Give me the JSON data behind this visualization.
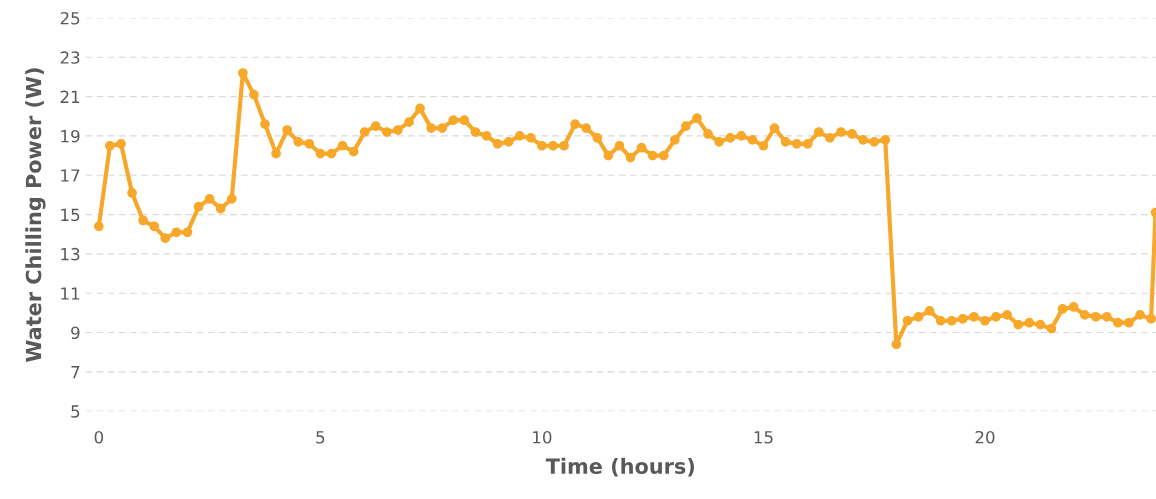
{
  "chart_data": {
    "type": "line",
    "xlabel": "Time (hours)",
    "ylabel": "Water Chilling Power (W)",
    "x": [
      0,
      0.25,
      0.5,
      0.75,
      1,
      1.25,
      1.5,
      1.75,
      2,
      2.25,
      2.5,
      2.75,
      3,
      3.25,
      3.5,
      3.75,
      4,
      4.25,
      4.5,
      4.75,
      5,
      5.25,
      5.5,
      5.75,
      6,
      6.25,
      6.5,
      6.75,
      7,
      7.25,
      7.5,
      7.75,
      8,
      8.25,
      8.5,
      8.75,
      9,
      9.25,
      9.5,
      9.75,
      10,
      10.25,
      10.5,
      10.75,
      11,
      11.25,
      11.5,
      11.75,
      12,
      12.25,
      12.5,
      12.75,
      13,
      13.25,
      13.5,
      13.75,
      14,
      14.25,
      14.5,
      14.75,
      15,
      15.25,
      15.5,
      15.75,
      16,
      16.25,
      16.5,
      16.75,
      17,
      17.25,
      17.5,
      17.75,
      18,
      18.25,
      18.5,
      18.75,
      19,
      19.25,
      19.5,
      19.75,
      20,
      20.25,
      20.5,
      20.75,
      21,
      21.25,
      21.5,
      21.75,
      22,
      22.25,
      22.5,
      22.75,
      23,
      23.25,
      23.5,
      23.75,
      23.85
    ],
    "series": [
      {
        "color": "#f7a82a",
        "values": [
          14.4,
          18.5,
          18.6,
          16.1,
          14.7,
          14.4,
          13.8,
          14.1,
          14.1,
          15.4,
          15.8,
          15.3,
          15.8,
          22.2,
          21.1,
          19.6,
          18.1,
          19.3,
          18.7,
          18.6,
          18.1,
          18.1,
          18.5,
          18.2,
          19.2,
          19.5,
          19.2,
          19.3,
          19.7,
          20.4,
          19.4,
          19.4,
          19.8,
          19.8,
          19.2,
          19.0,
          18.6,
          18.7,
          19.0,
          18.9,
          18.5,
          18.5,
          18.5,
          19.6,
          19.4,
          18.9,
          18.0,
          18.5,
          17.9,
          18.4,
          18.0,
          18.0,
          18.8,
          19.5,
          19.9,
          19.1,
          18.7,
          18.9,
          19.0,
          18.8,
          18.5,
          19.4,
          18.7,
          18.6,
          18.6,
          19.2,
          18.9,
          19.2,
          19.1,
          18.8,
          18.7,
          18.8,
          8.4,
          9.6,
          9.8,
          10.1,
          9.6,
          9.6,
          9.7,
          9.8,
          9.6,
          9.8,
          9.9,
          9.4,
          9.5,
          9.4,
          9.2,
          10.2,
          10.3,
          9.9,
          9.8,
          9.8,
          9.5,
          9.5,
          9.9,
          9.7,
          15.1
        ]
      }
    ],
    "xlim": [
      -0.3,
      23.86
    ],
    "xticks": [
      0,
      5,
      10,
      15,
      20
    ],
    "ylim": [
      5,
      25
    ],
    "yticks": [
      5,
      7,
      9,
      11,
      13,
      15,
      17,
      19,
      21,
      23,
      25
    ],
    "grid": "y",
    "marker": "circle",
    "line_style": "solid"
  }
}
